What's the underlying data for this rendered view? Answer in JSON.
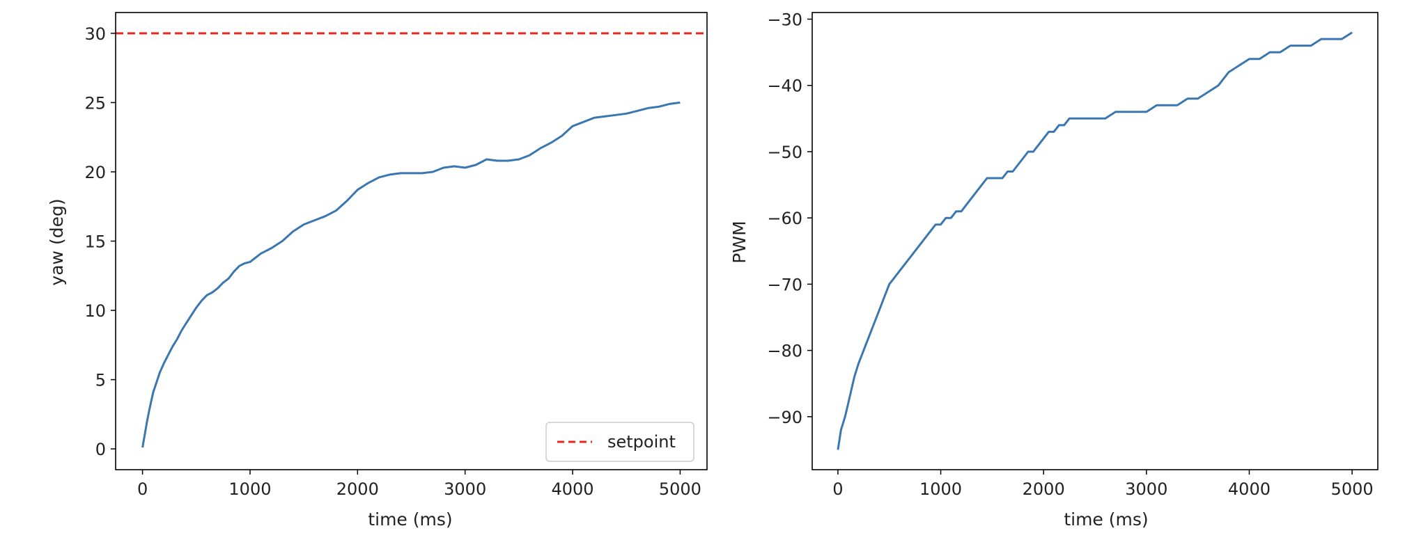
{
  "colors": {
    "series": "#3a76b0",
    "setpoint": "#e8291c",
    "axes": "#000000",
    "text": "#222222",
    "legend_border": "#cccccc"
  },
  "chart_data": [
    {
      "type": "line",
      "xlabel": "time (ms)",
      "ylabel": "yaw (deg)",
      "xlim": [
        -250,
        5250
      ],
      "ylim": [
        -1.5,
        31.5
      ],
      "xticks": [
        0,
        1000,
        2000,
        3000,
        4000,
        5000
      ],
      "yticks": [
        0,
        5,
        10,
        15,
        20,
        25,
        30
      ],
      "grid": false,
      "legend": {
        "position": "lower-right",
        "entries": [
          "setpoint"
        ]
      },
      "hlines": [
        {
          "name": "setpoint",
          "y": 30,
          "style": "dashed",
          "color": "#e8291c"
        }
      ],
      "series": [
        {
          "color": "#3a76b0",
          "x": [
            0,
            20,
            40,
            60,
            80,
            100,
            130,
            160,
            200,
            240,
            280,
            320,
            360,
            400,
            450,
            500,
            550,
            600,
            650,
            700,
            750,
            800,
            850,
            900,
            950,
            1000,
            1100,
            1200,
            1300,
            1400,
            1500,
            1600,
            1700,
            1800,
            1900,
            2000,
            2100,
            2200,
            2300,
            2400,
            2500,
            2600,
            2700,
            2800,
            2900,
            3000,
            3100,
            3200,
            3300,
            3400,
            3500,
            3600,
            3700,
            3800,
            3900,
            4000,
            4100,
            4200,
            4300,
            4400,
            4500,
            4600,
            4700,
            4800,
            4900,
            5000
          ],
          "y": [
            0.1,
            1.0,
            1.9,
            2.7,
            3.4,
            4.1,
            4.8,
            5.5,
            6.2,
            6.8,
            7.4,
            7.9,
            8.5,
            9.0,
            9.6,
            10.2,
            10.7,
            11.1,
            11.3,
            11.6,
            12.0,
            12.3,
            12.8,
            13.2,
            13.4,
            13.5,
            14.1,
            14.5,
            15.0,
            15.7,
            16.2,
            16.5,
            16.8,
            17.2,
            17.9,
            18.7,
            19.2,
            19.6,
            19.8,
            19.9,
            19.9,
            19.9,
            20.0,
            20.3,
            20.4,
            20.3,
            20.5,
            20.9,
            20.8,
            20.8,
            20.9,
            21.2,
            21.7,
            22.1,
            22.6,
            23.3,
            23.6,
            23.9,
            24.0,
            24.1,
            24.2,
            24.4,
            24.6,
            24.7,
            24.9,
            25.0
          ]
        }
      ]
    },
    {
      "type": "line",
      "xlabel": "time (ms)",
      "ylabel": "PWM",
      "xlim": [
        -250,
        5250
      ],
      "ylim": [
        -98,
        -29
      ],
      "xticks": [
        0,
        1000,
        2000,
        3000,
        4000,
        5000
      ],
      "yticks": [
        -90,
        -80,
        -70,
        -60,
        -50,
        -40,
        -30
      ],
      "grid": false,
      "series": [
        {
          "color": "#3a76b0",
          "x": [
            0,
            10,
            30,
            50,
            70,
            100,
            130,
            160,
            200,
            250,
            300,
            350,
            400,
            450,
            500,
            550,
            600,
            650,
            700,
            750,
            800,
            850,
            900,
            950,
            1000,
            1050,
            1100,
            1150,
            1200,
            1250,
            1300,
            1350,
            1400,
            1450,
            1500,
            1550,
            1600,
            1650,
            1700,
            1750,
            1800,
            1850,
            1900,
            1950,
            2000,
            2050,
            2100,
            2150,
            2200,
            2250,
            2300,
            2400,
            2500,
            2600,
            2700,
            2800,
            2900,
            3000,
            3100,
            3200,
            3300,
            3400,
            3500,
            3600,
            3700,
            3800,
            3900,
            4000,
            4100,
            4200,
            4300,
            4400,
            4500,
            4600,
            4700,
            4800,
            4900,
            5000
          ],
          "y": [
            -95,
            -94,
            -92,
            -91,
            -90,
            -88,
            -86,
            -84,
            -82,
            -80,
            -78,
            -76,
            -74,
            -72,
            -70,
            -69,
            -68,
            -67,
            -66,
            -65,
            -64,
            -63,
            -62,
            -61,
            -61,
            -60,
            -60,
            -59,
            -59,
            -58,
            -57,
            -56,
            -55,
            -54,
            -54,
            -54,
            -54,
            -53,
            -53,
            -52,
            -51,
            -50,
            -50,
            -49,
            -48,
            -47,
            -47,
            -46,
            -46,
            -45,
            -45,
            -45,
            -45,
            -45,
            -44,
            -44,
            -44,
            -44,
            -43,
            -43,
            -43,
            -42,
            -42,
            -41,
            -40,
            -38,
            -37,
            -36,
            -36,
            -35,
            -35,
            -34,
            -34,
            -34,
            -33,
            -33,
            -33,
            -32
          ]
        }
      ]
    }
  ]
}
